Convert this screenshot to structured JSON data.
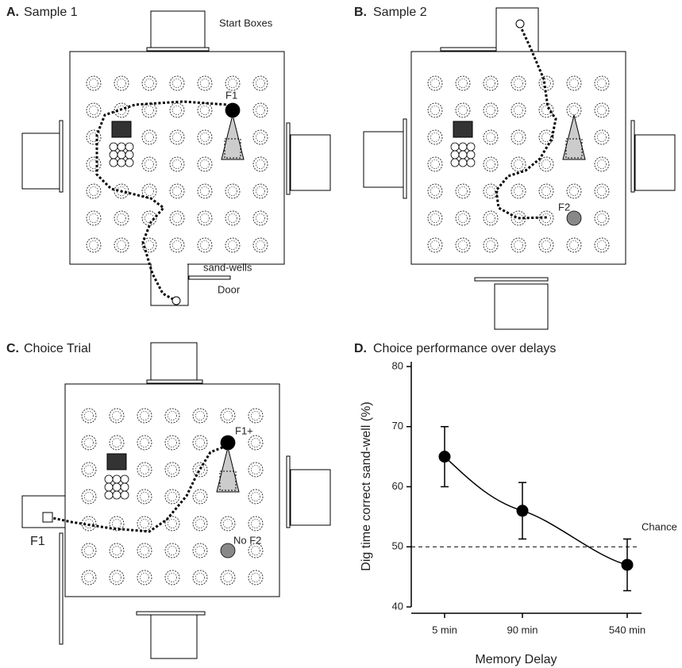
{
  "panels": [
    {
      "label": "A.",
      "title": "Sample 1",
      "annotations": [
        "Start Boxes",
        "F1",
        "sand-wells",
        "Door"
      ]
    },
    {
      "label": "B.",
      "title": "Sample 2",
      "annotations": [
        "F2"
      ]
    },
    {
      "label": "C.",
      "title": "Choice Trial",
      "annotations": [
        "F1+",
        "No F2",
        "F1"
      ]
    }
  ],
  "chart_data": {
    "type": "line",
    "label": "D.",
    "title": "Choice performance over delays",
    "x_label": "Memory Delay",
    "y_label": "Dig time correct sand-well (%)",
    "categories": [
      "5 min",
      "90 min",
      "540 min"
    ],
    "values": [
      65,
      56,
      47
    ],
    "errors": [
      5,
      4.7,
      4.3
    ],
    "color": "#000000",
    "ylim": [
      40,
      80
    ],
    "yticks": [
      40,
      50,
      60,
      70,
      80
    ],
    "reference_line": {
      "value": 50,
      "label": "Chance"
    }
  }
}
